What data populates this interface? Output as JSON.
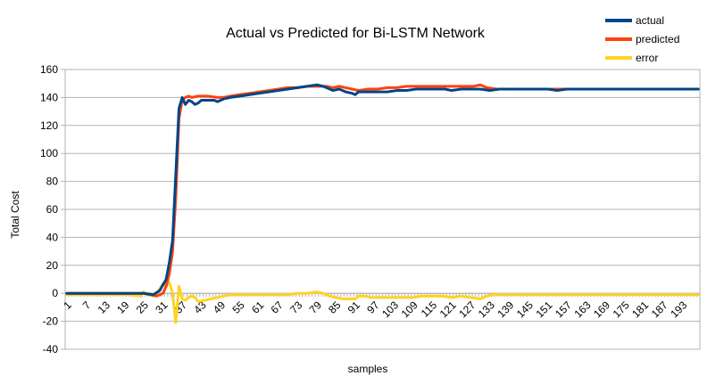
{
  "chart_data": {
    "type": "line",
    "title": "Actual vs Predicted for Bi-LSTM Network",
    "xlabel": "samples",
    "ylabel": "Total Cost",
    "ylim": [
      -40,
      160
    ],
    "yticks": [
      -40,
      -20,
      0,
      20,
      40,
      60,
      80,
      100,
      120,
      140,
      160
    ],
    "x_count": 198,
    "xtick_labels": [
      "1",
      "7",
      "13",
      "19",
      "25",
      "31",
      "37",
      "43",
      "49",
      "55",
      "61",
      "67",
      "73",
      "79",
      "85",
      "91",
      "97",
      "103",
      "109",
      "115",
      "121",
      "127",
      "133",
      "139",
      "145",
      "151",
      "157",
      "163",
      "169",
      "175",
      "181",
      "187",
      "193"
    ],
    "grid": "horizontal",
    "legend_position": "top-right",
    "series": [
      {
        "name": "actual",
        "color": "#004586",
        "points": [
          [
            1,
            0
          ],
          [
            10,
            0
          ],
          [
            20,
            0
          ],
          [
            25,
            0
          ],
          [
            28,
            -1
          ],
          [
            30,
            2
          ],
          [
            32,
            10
          ],
          [
            33,
            22
          ],
          [
            34,
            38
          ],
          [
            35,
            85
          ],
          [
            36,
            132
          ],
          [
            37,
            140
          ],
          [
            38,
            135
          ],
          [
            39,
            138
          ],
          [
            40,
            137
          ],
          [
            41,
            135
          ],
          [
            42,
            136
          ],
          [
            43,
            138
          ],
          [
            45,
            138
          ],
          [
            47,
            138
          ],
          [
            48,
            137
          ],
          [
            50,
            139
          ],
          [
            52,
            140
          ],
          [
            55,
            141
          ],
          [
            58,
            142
          ],
          [
            61,
            143
          ],
          [
            64,
            144
          ],
          [
            67,
            145
          ],
          [
            70,
            146
          ],
          [
            73,
            147
          ],
          [
            76,
            148
          ],
          [
            79,
            149
          ],
          [
            81,
            148
          ],
          [
            82,
            147
          ],
          [
            84,
            145
          ],
          [
            86,
            146
          ],
          [
            88,
            144
          ],
          [
            90,
            143
          ],
          [
            91,
            142
          ],
          [
            92,
            144
          ],
          [
            95,
            144
          ],
          [
            98,
            144
          ],
          [
            101,
            144
          ],
          [
            104,
            145
          ],
          [
            107,
            145
          ],
          [
            110,
            146
          ],
          [
            113,
            146
          ],
          [
            116,
            146
          ],
          [
            119,
            146
          ],
          [
            121,
            145
          ],
          [
            124,
            146
          ],
          [
            127,
            146
          ],
          [
            130,
            146
          ],
          [
            133,
            145
          ],
          [
            136,
            146
          ],
          [
            139,
            146
          ],
          [
            142,
            146
          ],
          [
            145,
            146
          ],
          [
            148,
            146
          ],
          [
            151,
            146
          ],
          [
            154,
            145
          ],
          [
            157,
            146
          ],
          [
            160,
            146
          ],
          [
            163,
            146
          ],
          [
            166,
            146
          ],
          [
            169,
            146
          ],
          [
            172,
            146
          ],
          [
            175,
            146
          ],
          [
            178,
            146
          ],
          [
            181,
            146
          ],
          [
            184,
            146
          ],
          [
            187,
            146
          ],
          [
            190,
            146
          ],
          [
            193,
            146
          ],
          [
            198,
            146
          ]
        ]
      },
      {
        "name": "predicted",
        "color": "#ff420e",
        "points": [
          [
            1,
            0
          ],
          [
            10,
            0
          ],
          [
            20,
            0
          ],
          [
            25,
            0
          ],
          [
            27,
            -1
          ],
          [
            29,
            -2
          ],
          [
            31,
            0
          ],
          [
            32,
            5
          ],
          [
            33,
            14
          ],
          [
            34,
            30
          ],
          [
            35,
            68
          ],
          [
            36,
            125
          ],
          [
            37,
            138
          ],
          [
            38,
            140
          ],
          [
            39,
            141
          ],
          [
            40,
            140
          ],
          [
            42,
            141
          ],
          [
            45,
            141
          ],
          [
            48,
            140
          ],
          [
            50,
            140
          ],
          [
            52,
            141
          ],
          [
            55,
            142
          ],
          [
            58,
            143
          ],
          [
            61,
            144
          ],
          [
            64,
            145
          ],
          [
            67,
            146
          ],
          [
            70,
            147
          ],
          [
            73,
            147
          ],
          [
            76,
            148
          ],
          [
            79,
            148
          ],
          [
            82,
            148
          ],
          [
            84,
            147
          ],
          [
            86,
            148
          ],
          [
            88,
            147
          ],
          [
            90,
            146
          ],
          [
            92,
            145
          ],
          [
            95,
            146
          ],
          [
            98,
            146
          ],
          [
            101,
            147
          ],
          [
            104,
            147
          ],
          [
            107,
            148
          ],
          [
            110,
            148
          ],
          [
            113,
            148
          ],
          [
            116,
            148
          ],
          [
            119,
            148
          ],
          [
            122,
            148
          ],
          [
            125,
            148
          ],
          [
            128,
            148
          ],
          [
            130,
            149
          ],
          [
            132,
            147
          ],
          [
            135,
            146
          ],
          [
            138,
            146
          ],
          [
            141,
            146
          ],
          [
            144,
            146
          ],
          [
            147,
            146
          ],
          [
            150,
            146
          ],
          [
            153,
            146
          ],
          [
            156,
            146
          ],
          [
            159,
            146
          ],
          [
            162,
            146
          ],
          [
            165,
            146
          ],
          [
            168,
            146
          ],
          [
            171,
            146
          ],
          [
            174,
            146
          ],
          [
            177,
            146
          ],
          [
            180,
            146
          ],
          [
            183,
            146
          ],
          [
            186,
            146
          ],
          [
            189,
            146
          ],
          [
            192,
            146
          ],
          [
            198,
            146
          ]
        ]
      },
      {
        "name": "error",
        "color": "#ffd320",
        "points": [
          [
            1,
            -1
          ],
          [
            10,
            -1
          ],
          [
            20,
            -1
          ],
          [
            24,
            -2
          ],
          [
            25,
            1
          ],
          [
            26,
            -1
          ],
          [
            27,
            0
          ],
          [
            28,
            -2
          ],
          [
            29,
            -1
          ],
          [
            30,
            3
          ],
          [
            31,
            7
          ],
          [
            32,
            5
          ],
          [
            33,
            8
          ],
          [
            34,
            0
          ],
          [
            35,
            -21
          ],
          [
            36,
            5
          ],
          [
            37,
            -4
          ],
          [
            38,
            -5
          ],
          [
            39,
            -3
          ],
          [
            40,
            -2
          ],
          [
            41,
            -3
          ],
          [
            42,
            -6
          ],
          [
            44,
            -5
          ],
          [
            46,
            -4
          ],
          [
            48,
            -3
          ],
          [
            50,
            -2
          ],
          [
            52,
            -1
          ],
          [
            55,
            -1
          ],
          [
            58,
            -1
          ],
          [
            61,
            -1
          ],
          [
            64,
            -1
          ],
          [
            67,
            -1
          ],
          [
            70,
            -1
          ],
          [
            73,
            0
          ],
          [
            76,
            0
          ],
          [
            79,
            1
          ],
          [
            81,
            0
          ],
          [
            83,
            -2
          ],
          [
            85,
            -3
          ],
          [
            87,
            -4
          ],
          [
            89,
            -4
          ],
          [
            91,
            -4
          ],
          [
            92,
            -2
          ],
          [
            94,
            -2
          ],
          [
            96,
            -3
          ],
          [
            98,
            -3
          ],
          [
            100,
            -3
          ],
          [
            103,
            -3
          ],
          [
            106,
            -3
          ],
          [
            109,
            -3
          ],
          [
            112,
            -2
          ],
          [
            115,
            -2
          ],
          [
            118,
            -2
          ],
          [
            121,
            -3
          ],
          [
            124,
            -2
          ],
          [
            127,
            -3
          ],
          [
            130,
            -4
          ],
          [
            132,
            -2
          ],
          [
            134,
            -1
          ],
          [
            137,
            -1
          ],
          [
            140,
            -1
          ],
          [
            145,
            -1
          ],
          [
            150,
            -1
          ],
          [
            155,
            -1
          ],
          [
            160,
            -1
          ],
          [
            165,
            -1
          ],
          [
            170,
            -1
          ],
          [
            175,
            -1
          ],
          [
            180,
            -1
          ],
          [
            185,
            -1
          ],
          [
            190,
            -1
          ],
          [
            198,
            -1
          ]
        ]
      }
    ]
  }
}
